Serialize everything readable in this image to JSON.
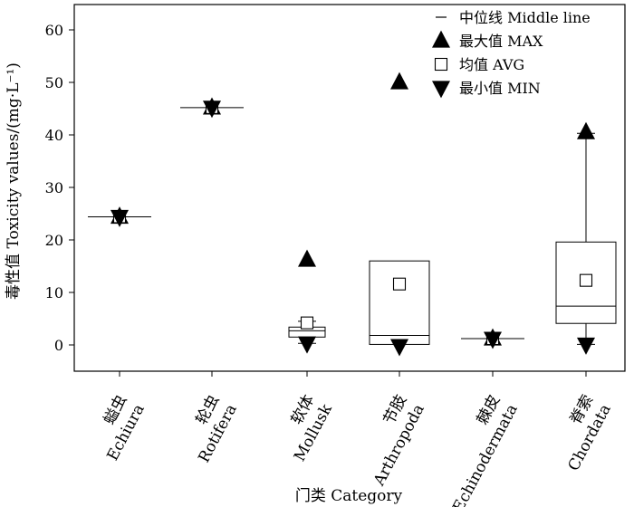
{
  "chart_data": {
    "type": "box",
    "ylabel": "毒性值 Toxicity values/(mg·L⁻¹)",
    "xlabel": "门类 Category",
    "ylim": [
      -5,
      65
    ],
    "yticks": [
      0,
      10,
      20,
      30,
      40,
      50,
      60
    ],
    "categories": [
      {
        "cn": "螠虫",
        "en": "Echiura"
      },
      {
        "cn": "轮虫",
        "en": "Rotifera"
      },
      {
        "cn": "软体",
        "en": "Mollusk"
      },
      {
        "cn": "节肢",
        "en": "Arthropoda"
      },
      {
        "cn": "棘皮",
        "en": "Echinodermata"
      },
      {
        "cn": "脊索",
        "en": "Chordata"
      }
    ],
    "series": [
      {
        "category": "Echiura",
        "min": 24.4,
        "q1": 24.4,
        "median": 24.4,
        "q3": 24.4,
        "whisker_low": 24.4,
        "whisker_high": 24.4,
        "max": 24.4,
        "avg": 24.4
      },
      {
        "category": "Rotifera",
        "min": 45.2,
        "q1": 45.2,
        "median": 45.2,
        "q3": 45.2,
        "whisker_low": 45.2,
        "whisker_high": 45.2,
        "max": 45.2,
        "avg": 45.2
      },
      {
        "category": "Mollusk",
        "min": 0.3,
        "q1": 1.5,
        "median": 2.7,
        "q3": 3.4,
        "whisker_low": 0.3,
        "whisker_high": 4.5,
        "max": 16.2,
        "avg": 4.2
      },
      {
        "category": "Arthropoda",
        "min": -0.2,
        "q1": 0.1,
        "median": 1.8,
        "q3": 16.0,
        "whisker_low": 0.1,
        "whisker_high": 16.0,
        "max": 50.0,
        "avg": 11.6
      },
      {
        "category": "Echinodermata",
        "min": 1.2,
        "q1": 1.2,
        "median": 1.2,
        "q3": 1.2,
        "whisker_low": 1.2,
        "whisker_high": 1.2,
        "max": 1.2,
        "avg": 1.2
      },
      {
        "category": "Chordata",
        "min": 0.1,
        "q1": 4.1,
        "median": 7.4,
        "q3": 19.6,
        "whisker_low": 0.1,
        "whisker_high": 40.3,
        "max": 40.5,
        "avg": 12.3
      }
    ],
    "legend": {
      "position": "top-right",
      "items": [
        {
          "symbol": "line",
          "label": "中位线 Middle line"
        },
        {
          "symbol": "triangle-up",
          "label": "最大值 MAX"
        },
        {
          "symbol": "square-open",
          "label": "均值 AVG"
        },
        {
          "symbol": "triangle-down",
          "label": "最小值 MIN"
        }
      ]
    },
    "grid": false
  }
}
